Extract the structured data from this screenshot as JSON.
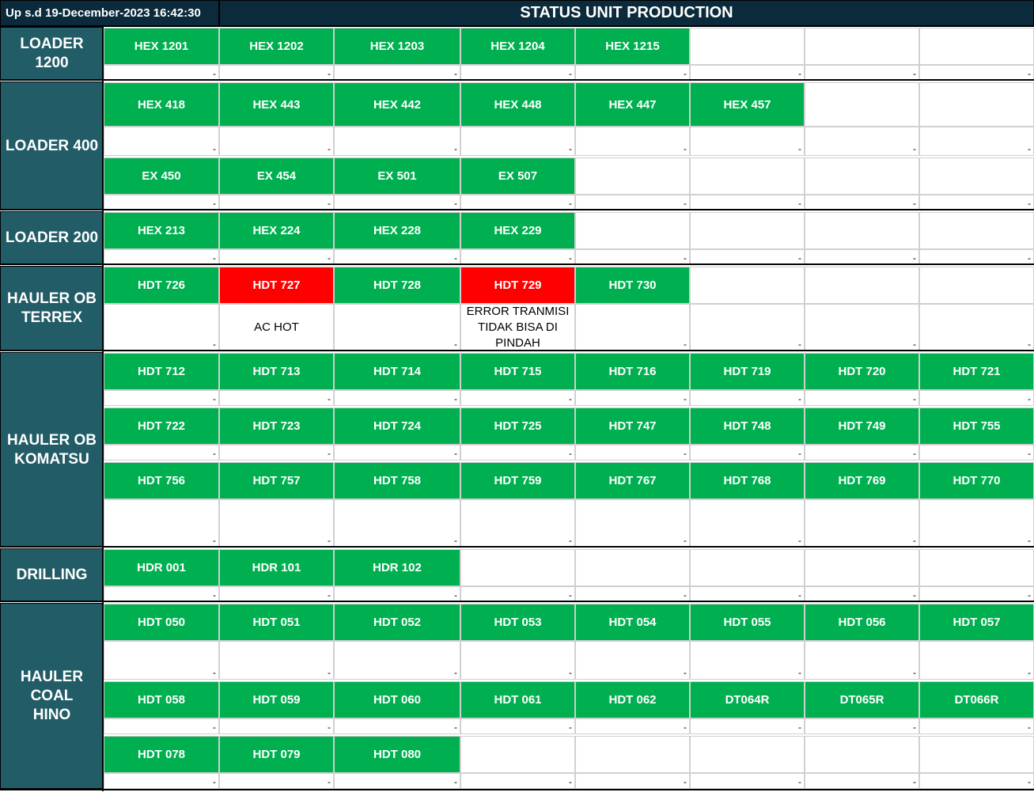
{
  "header": {
    "updated_label": "Up s.d 19-December-2023 16:42:30",
    "title": "STATUS UNIT PRODUCTION"
  },
  "colors": {
    "header_bg": "#0b2a3b",
    "group_bg": "#225c66",
    "ready": "#00b050",
    "breakdown": "#ff0000"
  },
  "groups": [
    {
      "name": "LOADER\n1200",
      "rows": [
        {
          "units": [
            {
              "code": "HEX 1201",
              "status": "-"
            },
            {
              "code": "HEX 1202",
              "status": "-"
            },
            {
              "code": "HEX 1203",
              "status": "-"
            },
            {
              "code": "HEX 1204",
              "status": "-"
            },
            {
              "code": "HEX 1215",
              "status": "-"
            },
            {
              "code": "",
              "status": "-"
            },
            {
              "code": "",
              "status": "-"
            },
            {
              "code": "",
              "status": "-"
            }
          ]
        }
      ]
    },
    {
      "name": "LOADER 400",
      "rows": [
        {
          "units": [
            {
              "code": "HEX 418",
              "status": "-"
            },
            {
              "code": "HEX 443",
              "status": "-"
            },
            {
              "code": "HEX 442",
              "status": "-"
            },
            {
              "code": "HEX 448",
              "status": "-"
            },
            {
              "code": "HEX 447",
              "status": "-"
            },
            {
              "code": "HEX 457",
              "status": "-"
            },
            {
              "code": "",
              "status": "-"
            },
            {
              "code": "",
              "status": "-"
            }
          ]
        },
        {
          "units": [
            {
              "code": "EX 450",
              "status": "-"
            },
            {
              "code": "EX 454",
              "status": "-"
            },
            {
              "code": "EX 501",
              "status": "-"
            },
            {
              "code": "EX 507",
              "status": "-"
            },
            {
              "code": "",
              "status": "-"
            },
            {
              "code": "",
              "status": "-"
            },
            {
              "code": "",
              "status": "-"
            },
            {
              "code": "",
              "status": "-"
            }
          ]
        }
      ]
    },
    {
      "name": "LOADER 200",
      "rows": [
        {
          "units": [
            {
              "code": "HEX 213",
              "status": "-"
            },
            {
              "code": "HEX 224",
              "status": "-"
            },
            {
              "code": "HEX 228",
              "status": "-"
            },
            {
              "code": "HEX 229",
              "status": "-"
            },
            {
              "code": "",
              "status": "-"
            },
            {
              "code": "",
              "status": "-"
            },
            {
              "code": "",
              "status": "-"
            },
            {
              "code": "",
              "status": "-"
            }
          ]
        }
      ]
    },
    {
      "name": "HAULER OB\nTERREX",
      "rows": [
        {
          "units": [
            {
              "code": "HDT 726",
              "status": "-"
            },
            {
              "code": "HDT 727",
              "status": "AC HOT",
              "breakdown": true
            },
            {
              "code": "HDT 728",
              "status": "-"
            },
            {
              "code": "HDT 729",
              "status": "ERROR TRANMISI\nTIDAK BISA DI\nPINDAH",
              "breakdown": true
            },
            {
              "code": "HDT 730",
              "status": "-"
            },
            {
              "code": "",
              "status": "-"
            },
            {
              "code": "",
              "status": "-"
            },
            {
              "code": "",
              "status": "-"
            }
          ]
        }
      ]
    },
    {
      "name": "HAULER OB\nKOMATSU",
      "rows": [
        {
          "units": [
            {
              "code": "HDT 712",
              "status": "-"
            },
            {
              "code": "HDT 713",
              "status": "-"
            },
            {
              "code": "HDT 714",
              "status": "-"
            },
            {
              "code": "HDT 715",
              "status": "-"
            },
            {
              "code": "HDT 716",
              "status": "-"
            },
            {
              "code": "HDT 719",
              "status": "-"
            },
            {
              "code": "HDT 720",
              "status": "-"
            },
            {
              "code": "HDT 721",
              "status": "-"
            }
          ]
        },
        {
          "units": [
            {
              "code": "HDT 722",
              "status": "-"
            },
            {
              "code": "HDT 723",
              "status": "-"
            },
            {
              "code": "HDT 724",
              "status": "-"
            },
            {
              "code": "HDT 725",
              "status": "-"
            },
            {
              "code": "HDT 747",
              "status": "-"
            },
            {
              "code": "HDT 748",
              "status": "-"
            },
            {
              "code": "HDT 749",
              "status": "-"
            },
            {
              "code": "HDT 755",
              "status": "-"
            }
          ]
        },
        {
          "units": [
            {
              "code": "HDT 756",
              "status": "-"
            },
            {
              "code": "HDT 757",
              "status": "-"
            },
            {
              "code": "HDT 758",
              "status": "-"
            },
            {
              "code": "HDT 759",
              "status": "-"
            },
            {
              "code": "HDT 767",
              "status": "-"
            },
            {
              "code": "HDT 768",
              "status": "-"
            },
            {
              "code": "HDT 769",
              "status": "-"
            },
            {
              "code": "HDT 770",
              "status": "-"
            }
          ]
        }
      ]
    },
    {
      "name": "DRILLING",
      "rows": [
        {
          "units": [
            {
              "code": "HDR 001",
              "status": "-"
            },
            {
              "code": "HDR 101",
              "status": "-"
            },
            {
              "code": "HDR 102",
              "status": "-"
            },
            {
              "code": "",
              "status": "-"
            },
            {
              "code": "",
              "status": "-"
            },
            {
              "code": "",
              "status": "-"
            },
            {
              "code": "",
              "status": "-"
            },
            {
              "code": "",
              "status": "-"
            }
          ]
        }
      ]
    },
    {
      "name": "HAULER\nCOAL\nHINO",
      "rows": [
        {
          "units": [
            {
              "code": "HDT 050",
              "status": "-"
            },
            {
              "code": "HDT 051",
              "status": "-"
            },
            {
              "code": "HDT 052",
              "status": "-"
            },
            {
              "code": "HDT 053",
              "status": "-"
            },
            {
              "code": "HDT 054",
              "status": "-"
            },
            {
              "code": "HDT 055",
              "status": "-"
            },
            {
              "code": "HDT 056",
              "status": "-"
            },
            {
              "code": "HDT 057",
              "status": "-"
            }
          ]
        },
        {
          "units": [
            {
              "code": "HDT 058",
              "status": "-"
            },
            {
              "code": "HDT 059",
              "status": "-"
            },
            {
              "code": "HDT 060",
              "status": "-"
            },
            {
              "code": "HDT 061",
              "status": "-"
            },
            {
              "code": "HDT 062",
              "status": "-"
            },
            {
              "code": "DT064R",
              "status": "-"
            },
            {
              "code": "DT065R",
              "status": "-"
            },
            {
              "code": "DT066R",
              "status": "-"
            }
          ]
        },
        {
          "units": [
            {
              "code": "HDT 078",
              "status": "-"
            },
            {
              "code": "HDT 079",
              "status": "-"
            },
            {
              "code": "HDT 080",
              "status": "-"
            },
            {
              "code": "",
              "status": "-"
            },
            {
              "code": "",
              "status": "-"
            },
            {
              "code": "",
              "status": "-"
            },
            {
              "code": "",
              "status": "-"
            },
            {
              "code": "",
              "status": "-"
            }
          ]
        }
      ]
    }
  ]
}
